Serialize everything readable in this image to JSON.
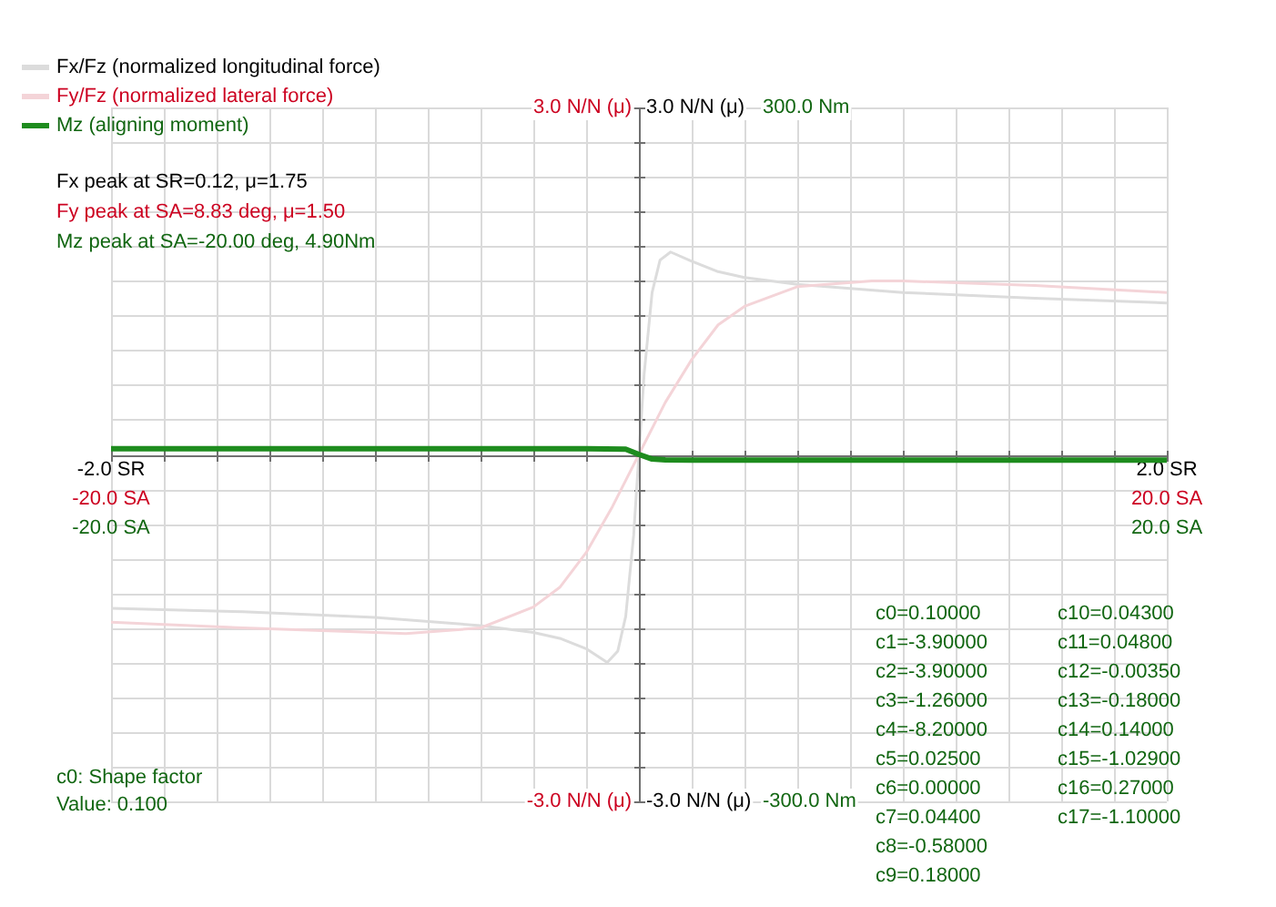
{
  "chart_data": [
    {
      "type": "line",
      "legend": "top left",
      "grid": true,
      "xlim": [
        -2,
        2
      ],
      "xticks": [
        {
          "value": -2,
          "label": "-2.0 SR"
        },
        {
          "value": -1.8,
          "label": null
        },
        {
          "value": -1.6,
          "label": null
        },
        {
          "value": -1.4,
          "label": null
        },
        {
          "value": -1.2,
          "label": null
        },
        {
          "value": -1,
          "label": null
        },
        {
          "value": -0.8,
          "label": null
        },
        {
          "value": -0.6,
          "label": null
        },
        {
          "value": -0.4,
          "label": null
        },
        {
          "value": -0.2,
          "label": null
        },
        {
          "value": 0,
          "label": null
        },
        {
          "value": 0.2,
          "label": null
        },
        {
          "value": 0.4,
          "label": null
        },
        {
          "value": 0.6,
          "label": null
        },
        {
          "value": 0.8,
          "label": null
        },
        {
          "value": 1,
          "label": null
        },
        {
          "value": 1.2,
          "label": null
        },
        {
          "value": 1.4,
          "label": null
        },
        {
          "value": 1.6,
          "label": null
        },
        {
          "value": 1.8,
          "label": null
        },
        {
          "value": 2,
          "label": "2.0 SR"
        }
      ],
      "ylim": [
        -3,
        3
      ],
      "yticks": [
        {
          "value": -3,
          "label": "-3.0 N/N (μ)"
        },
        {
          "value": -2.7,
          "label": null
        },
        {
          "value": -2.4,
          "label": null
        },
        {
          "value": -2.1,
          "label": null
        },
        {
          "value": -1.8,
          "label": null
        },
        {
          "value": -1.5,
          "label": null
        },
        {
          "value": -1.2,
          "label": null
        },
        {
          "value": -0.9,
          "label": null
        },
        {
          "value": -0.6,
          "label": null
        },
        {
          "value": -0.3,
          "label": null
        },
        {
          "value": 0,
          "label": null
        },
        {
          "value": 0.3,
          "label": null
        },
        {
          "value": 0.6,
          "label": null
        },
        {
          "value": 0.9,
          "label": null
        },
        {
          "value": 1.2,
          "label": null
        },
        {
          "value": 1.5,
          "label": null
        },
        {
          "value": 1.8,
          "label": null
        },
        {
          "value": 2.1,
          "label": null
        },
        {
          "value": 2.4,
          "label": null
        },
        {
          "value": 2.7,
          "label": null
        },
        {
          "value": 3,
          "label": "3.0 N/N (μ)"
        }
      ],
      "series": [
        {
          "name": "Fx/Fz (normalized longitudinal force)",
          "color": "#dcdcdc",
          "x": [
            -2,
            -1.5,
            -1,
            -0.6,
            -0.4,
            -0.3,
            -0.2,
            -0.12,
            -0.08,
            -0.05,
            -0.02,
            0,
            0.02,
            0.05,
            0.08,
            0.12,
            0.2,
            0.3,
            0.4,
            0.6,
            1,
            1.5,
            2
          ],
          "values": [
            -1.33,
            -1.36,
            -1.41,
            -1.48,
            -1.54,
            -1.59,
            -1.68,
            -1.8,
            -1.7,
            -1.4,
            -0.7,
            0,
            0.7,
            1.4,
            1.68,
            1.75,
            1.67,
            1.58,
            1.53,
            1.47,
            1.4,
            1.35,
            1.31
          ]
        }
      ],
      "annotations": [
        "Fx peak at SR=0.12, μ=1.75",
        "c0: Shape factor",
        "Value: 0.100",
        "c0=0.10000",
        "c1=-3.90000",
        "c2=-3.90000",
        "c3=-1.26000",
        "c4=-8.20000",
        "c5=0.02500",
        "c6=0.00000",
        "c7=0.04400",
        "c8=-0.58000",
        "c9=0.18000",
        "c10=0.04300",
        "c11=0.04800",
        "c12=-0.00350",
        "c13=-0.18000",
        "c14=0.14000",
        "c15=-1.02900",
        "c16=0.27000",
        "c17=-1.10000"
      ]
    },
    {
      "type": "line",
      "legend": "top left",
      "xlim": [
        -20,
        20
      ],
      "xticks": [
        {
          "value": -20,
          "label": "-20.0 SA"
        },
        {
          "value": 20,
          "label": "20.0 SA"
        }
      ],
      "ylim": [
        -3,
        3
      ],
      "yticks": [
        {
          "value": -3,
          "label": "-3.0 N/N (μ)"
        },
        {
          "value": 3,
          "label": "3.0 N/N (μ)"
        }
      ],
      "series": [
        {
          "name": "Fy/Fz (normalized lateral force)",
          "color": "#f4d4d8",
          "x": [
            -20,
            -15,
            -10,
            -8.83,
            -6,
            -4,
            -3,
            -2,
            -1,
            0,
            1,
            2,
            3,
            4,
            6,
            8.83,
            10,
            15,
            20
          ],
          "values": [
            -1.45,
            -1.5,
            -1.54,
            -1.55,
            -1.5,
            -1.32,
            -1.15,
            -0.85,
            -0.45,
            0,
            0.45,
            0.82,
            1.12,
            1.28,
            1.45,
            1.5,
            1.5,
            1.46,
            1.4
          ]
        }
      ],
      "annotations": [
        "Fy peak at SA=8.83 deg, μ=1.50"
      ]
    },
    {
      "type": "line",
      "legend": "top left",
      "xlim": [
        -20,
        20
      ],
      "xticks": [
        {
          "value": -20,
          "label": "-20.0 SA"
        },
        {
          "value": 20,
          "label": "20.0 SA"
        }
      ],
      "ylim": [
        -300,
        300
      ],
      "yticks": [
        {
          "value": -300,
          "label": "-300.0 Nm"
        },
        {
          "value": 300,
          "label": "300.0 Nm"
        }
      ],
      "series": [
        {
          "name": "Mz (aligning moment)",
          "color": "#1e8c1e",
          "x": [
            -20,
            -2,
            -0.5,
            0,
            0.5,
            1,
            2,
            20
          ],
          "values": [
            4.9,
            4.9,
            4.5,
            0,
            -4,
            -4.7,
            -4.9,
            -4.9
          ]
        }
      ],
      "annotations": [
        "Mz peak at SA=-20.00 deg, 4.90Nm"
      ]
    }
  ]
}
